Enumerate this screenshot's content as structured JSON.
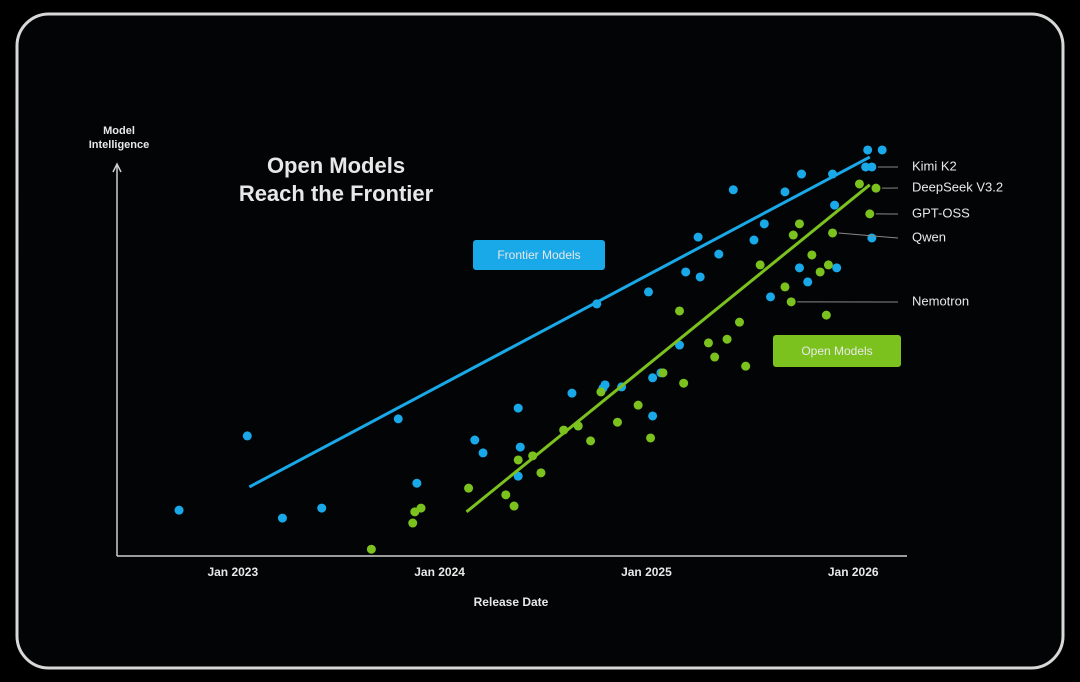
{
  "chart_data": {
    "type": "scatter",
    "title": [
      "Open Models",
      "Reach the Frontier"
    ],
    "y_label": [
      "Model",
      "Intelligence"
    ],
    "x_label": "Release Date",
    "xlim": [
      2022.44,
      2026.26
    ],
    "ylim": [
      0,
      100
    ],
    "xticks": [
      {
        "value": 2023,
        "label": "Jan 2023"
      },
      {
        "value": 2024,
        "label": "Jan 2024"
      },
      {
        "value": 2025,
        "label": "Jan 2025"
      },
      {
        "value": 2026,
        "label": "Jan 2026"
      }
    ],
    "series": [
      {
        "name": "Frontier Models",
        "color": "#19a9e8",
        "x": [
          2022.74,
          2023.07,
          2023.24,
          2023.43,
          2023.8,
          2023.89,
          2024.17,
          2024.21,
          2024.38,
          2024.39,
          2024.38,
          2024.64,
          2024.67,
          2024.76,
          2024.79,
          2024.8,
          2024.88,
          2025.01,
          2025.03,
          2025.03,
          2025.07,
          2025.16,
          2025.19,
          2025.25,
          2025.26,
          2025.35,
          2025.42,
          2025.52,
          2025.57,
          2025.67,
          2025.6,
          2025.75,
          2025.74,
          2025.78,
          2025.91,
          2025.9,
          2025.92,
          2026.07,
          2026.14,
          2026.06,
          2026.09,
          2026.09
        ],
        "values": [
          10.8,
          28.7,
          8.9,
          11.3,
          32.8,
          17.3,
          27.7,
          24.6,
          35.4,
          26.0,
          19.0,
          39.0,
          31.1,
          60.5,
          40.2,
          41.0,
          40.5,
          63.4,
          42.7,
          33.5,
          43.9,
          50.6,
          68.2,
          76.6,
          67.0,
          72.5,
          88.0,
          75.9,
          79.8,
          87.5,
          62.2,
          91.8,
          69.2,
          65.8,
          84.3,
          91.8,
          69.2,
          97.6,
          97.6,
          93.5,
          93.5,
          76.4
        ],
        "trend": {
          "x": [
            2023.08,
            2026.08
          ],
          "values": [
            16.4,
            95.9
          ]
        }
      },
      {
        "name": "Open Models",
        "color": "#7cc21f",
        "x": [
          2023.67,
          2023.87,
          2023.88,
          2023.91,
          2024.14,
          2024.32,
          2024.36,
          2024.38,
          2024.45,
          2024.49,
          2024.6,
          2024.67,
          2024.73,
          2024.78,
          2024.86,
          2024.96,
          2025.02,
          2025.08,
          2025.18,
          2025.16,
          2025.3,
          2025.33,
          2025.39,
          2025.45,
          2025.48,
          2025.55,
          2025.67,
          2025.7,
          2025.71,
          2025.8,
          2025.84,
          2025.87,
          2025.88,
          2025.9,
          2025.74,
          2026.03,
          2026.11,
          2026.08
        ],
        "values": [
          1.4,
          7.7,
          10.4,
          11.3,
          16.1,
          14.5,
          11.8,
          22.9,
          23.9,
          19.8,
          30.1,
          31.1,
          27.5,
          39.3,
          32.0,
          36.1,
          28.2,
          43.9,
          41.4,
          58.8,
          51.1,
          47.7,
          52.0,
          56.1,
          45.5,
          69.9,
          64.6,
          61.0,
          77.1,
          72.3,
          68.2,
          57.8,
          69.9,
          77.6,
          79.8,
          89.4,
          88.4,
          82.2
        ],
        "trend": {
          "x": [
            2024.13,
            2026.08
          ],
          "values": [
            10.4,
            89.2
          ]
        }
      }
    ],
    "annotations": [
      {
        "text": "Kimi K2",
        "x": 2026.09,
        "y": 93.5
      },
      {
        "text": "DeepSeek V3.2",
        "x": 2026.11,
        "y": 88.4
      },
      {
        "text": "GPT-OSS",
        "x": 2026.08,
        "y": 82.2
      },
      {
        "text": "Qwen",
        "x": 2025.9,
        "y": 77.6
      },
      {
        "text": "Nemotron",
        "x": 2025.7,
        "y": 61.0
      }
    ]
  }
}
